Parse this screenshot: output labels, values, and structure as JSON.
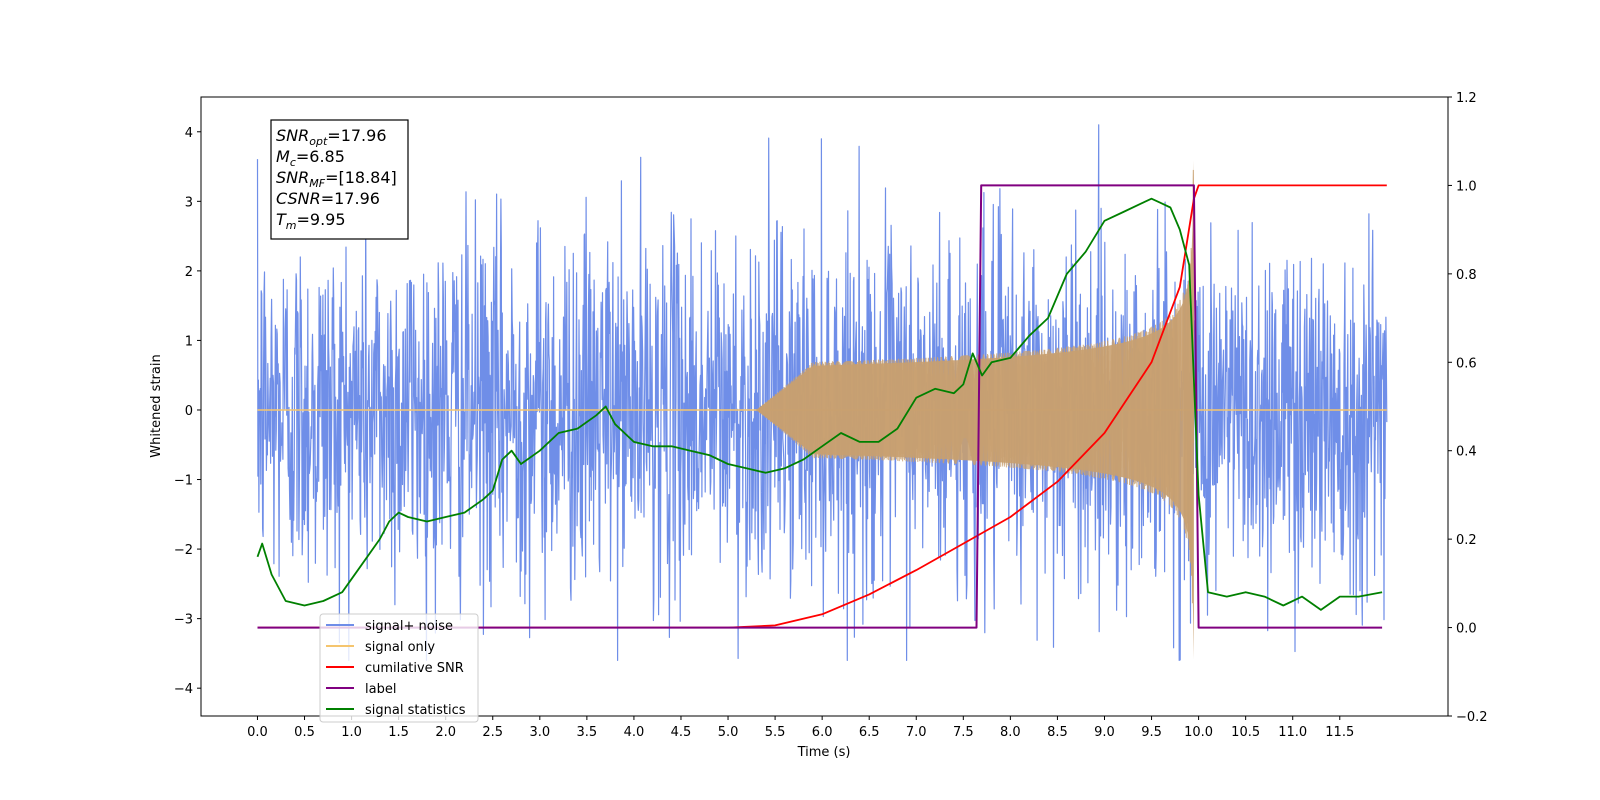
{
  "chart_data": {
    "type": "line",
    "title": "",
    "xlabel": "Time (s)",
    "ylabel": "Whitened strain",
    "xlim": [
      -0.6,
      12.65
    ],
    "ylim": [
      -4.4,
      4.5
    ],
    "y2lim": [
      -0.2,
      1.2
    ],
    "x_ticks": [
      "0.0",
      "0.5",
      "1.0",
      "1.5",
      "2.0",
      "2.5",
      "3.0",
      "3.5",
      "4.0",
      "4.5",
      "5.0",
      "5.5",
      "6.0",
      "6.5",
      "7.0",
      "7.5",
      "8.0",
      "8.5",
      "9.0",
      "9.5",
      "10.0",
      "10.5",
      "11.0",
      "11.5"
    ],
    "y_ticks": [
      "4",
      "3",
      "2",
      "1",
      "0",
      "−1",
      "−2",
      "−3",
      "−4"
    ],
    "y2_ticks": [
      "1.2",
      "1.0",
      "0.8",
      "0.6",
      "0.4",
      "0.2",
      "0.0",
      "−0.2"
    ],
    "annotation": [
      {
        "main": "SNR",
        "sub": "opt",
        "rest": "=17.96"
      },
      {
        "main": "M",
        "sub": "c",
        "rest": "=6.85"
      },
      {
        "main": "SNR",
        "sub": "MF",
        "rest": "=[18.84]"
      },
      {
        "main": "CSNR",
        "sub": "",
        "rest": "=17.96"
      },
      {
        "main": "T",
        "sub": "m",
        "rest": "=9.95"
      }
    ],
    "legend": {
      "location": "lower-left",
      "entries": [
        {
          "label": "signal+ noise",
          "color": "#6f8ee8"
        },
        {
          "label": "signal only",
          "color": "#f5c56e"
        },
        {
          "label": "cumilative SNR",
          "color": "#ff0000"
        },
        {
          "label": "label",
          "color": "#800080"
        },
        {
          "label": "signal statistics",
          "color": "#008000"
        }
      ]
    },
    "series": [
      {
        "name": "signal+ noise",
        "axis": "left",
        "color": "#6f8ee8",
        "x_range": [
          0,
          12
        ],
        "noise_envelope": [
          -3.6,
          4.1
        ]
      },
      {
        "name": "signal only",
        "axis": "left",
        "color": "#c8a070",
        "x_range": [
          0,
          12
        ],
        "chirp_start": 5.3,
        "merger_time": 9.95,
        "peak_amplitude": 3.9
      },
      {
        "name": "cumilative SNR",
        "axis": "right",
        "color": "#ff0000",
        "x": [
          0,
          5.0,
          5.5,
          6.0,
          6.5,
          7.0,
          7.5,
          8.0,
          8.5,
          9.0,
          9.5,
          9.8,
          9.95,
          10.0,
          12.0
        ],
        "y": [
          0.0,
          0.0,
          0.005,
          0.03,
          0.075,
          0.13,
          0.19,
          0.25,
          0.33,
          0.44,
          0.6,
          0.77,
          0.97,
          1.0,
          1.0
        ]
      },
      {
        "name": "label",
        "axis": "right",
        "color": "#800080",
        "x": [
          0,
          7.64,
          7.69,
          9.95,
          10.0,
          11.95
        ],
        "y": [
          0.0,
          0.0,
          1.0,
          1.0,
          0.0,
          0.0
        ]
      },
      {
        "name": "signal statistics",
        "axis": "right",
        "color": "#008000",
        "x": [
          0.0,
          0.05,
          0.15,
          0.3,
          0.5,
          0.7,
          0.9,
          1.1,
          1.3,
          1.4,
          1.5,
          1.6,
          1.8,
          2.0,
          2.2,
          2.4,
          2.5,
          2.6,
          2.7,
          2.8,
          3.0,
          3.2,
          3.4,
          3.6,
          3.7,
          3.8,
          4.0,
          4.2,
          4.4,
          4.6,
          4.8,
          5.0,
          5.2,
          5.4,
          5.6,
          5.8,
          6.0,
          6.2,
          6.4,
          6.6,
          6.8,
          7.0,
          7.2,
          7.4,
          7.5,
          7.6,
          7.7,
          7.8,
          8.0,
          8.2,
          8.4,
          8.6,
          8.8,
          9.0,
          9.2,
          9.4,
          9.5,
          9.6,
          9.7,
          9.8,
          9.9,
          10.0,
          10.1,
          10.3,
          10.5,
          10.7,
          10.9,
          11.1,
          11.3,
          11.5,
          11.7,
          11.95
        ],
        "y": [
          0.16,
          0.19,
          0.12,
          0.06,
          0.05,
          0.06,
          0.08,
          0.14,
          0.2,
          0.24,
          0.26,
          0.25,
          0.24,
          0.25,
          0.26,
          0.29,
          0.31,
          0.38,
          0.4,
          0.37,
          0.4,
          0.44,
          0.45,
          0.48,
          0.5,
          0.46,
          0.42,
          0.41,
          0.41,
          0.4,
          0.39,
          0.37,
          0.36,
          0.35,
          0.36,
          0.38,
          0.41,
          0.44,
          0.42,
          0.42,
          0.45,
          0.52,
          0.54,
          0.53,
          0.55,
          0.62,
          0.57,
          0.6,
          0.61,
          0.66,
          0.7,
          0.8,
          0.85,
          0.92,
          0.94,
          0.96,
          0.97,
          0.96,
          0.95,
          0.9,
          0.82,
          0.3,
          0.08,
          0.07,
          0.08,
          0.07,
          0.05,
          0.07,
          0.04,
          0.07,
          0.07,
          0.08
        ]
      }
    ]
  }
}
